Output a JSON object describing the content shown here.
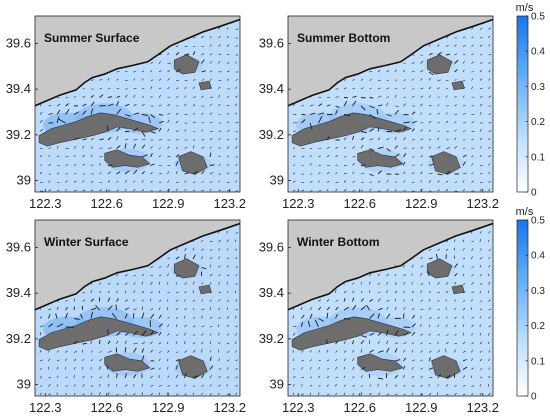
{
  "chart_data": [
    {
      "type": "heatmap",
      "title": "Summer Surface",
      "xticks": [
        "122.3",
        "122.6",
        "122.9",
        "123.2"
      ],
      "yticks": [
        "39.6",
        "39.4",
        "39.2",
        "39"
      ],
      "xlim": [
        122.25,
        123.25
      ],
      "ylim": [
        38.95,
        39.72
      ],
      "colorbar": {
        "unit": "m/s",
        "ticks": [
          "0.5",
          "0.4",
          "0.3",
          "0.2",
          "0.1",
          "0"
        ],
        "range": [
          0,
          0.5
        ]
      },
      "background_speed": 0.07
    },
    {
      "type": "heatmap",
      "title": "Summer Bottom",
      "xticks": [
        "122.3",
        "122.6",
        "122.9",
        "123.2"
      ],
      "yticks": [
        "39.6",
        "39.4",
        "39.2",
        "39"
      ],
      "xlim": [
        122.25,
        123.25
      ],
      "ylim": [
        38.95,
        39.72
      ],
      "colorbar": {
        "unit": "m/s",
        "ticks": [
          "0.5",
          "0.4",
          "0.3",
          "0.2",
          "0.1",
          "0"
        ],
        "range": [
          0,
          0.5
        ]
      },
      "background_speed": 0.06
    },
    {
      "type": "heatmap",
      "title": "Winter Surface",
      "xticks": [
        "122.3",
        "122.6",
        "122.9",
        "123.2"
      ],
      "yticks": [
        "39.6",
        "39.4",
        "39.2",
        "39"
      ],
      "xlim": [
        122.25,
        123.25
      ],
      "ylim": [
        38.95,
        39.72
      ],
      "colorbar": {
        "unit": "m/s",
        "ticks": [
          "0.5",
          "0.4",
          "0.3",
          "0.2",
          "0.1",
          "0"
        ],
        "range": [
          0,
          0.5
        ]
      },
      "background_speed": 0.08
    },
    {
      "type": "heatmap",
      "title": "Winter Bottom",
      "xticks": [
        "122.3",
        "122.6",
        "122.9",
        "123.2"
      ],
      "yticks": [
        "39.6",
        "39.4",
        "39.2",
        "39"
      ],
      "xlim": [
        122.25,
        123.25
      ],
      "ylim": [
        38.95,
        39.72
      ],
      "colorbar": {
        "unit": "m/s",
        "ticks": [
          "0.5",
          "0.4",
          "0.3",
          "0.2",
          "0.1",
          "0"
        ],
        "range": [
          0,
          0.5
        ]
      },
      "background_speed": 0.06
    }
  ],
  "colors": {
    "land": "#c8c8c8",
    "island": "#6d6d6d",
    "water_low": "#d8ecff",
    "water_high": "#1a75e8",
    "arrow": "#1a1a1a"
  }
}
